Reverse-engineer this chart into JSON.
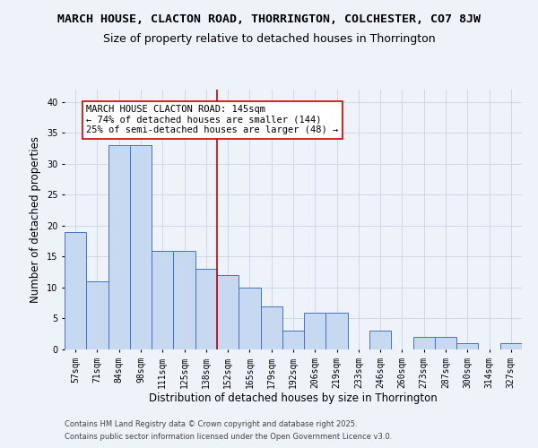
{
  "title": "MARCH HOUSE, CLACTON ROAD, THORRINGTON, COLCHESTER, CO7 8JW",
  "subtitle": "Size of property relative to detached houses in Thorrington",
  "xlabel": "Distribution of detached houses by size in Thorrington",
  "ylabel": "Number of detached properties",
  "categories": [
    "57sqm",
    "71sqm",
    "84sqm",
    "98sqm",
    "111sqm",
    "125sqm",
    "138sqm",
    "152sqm",
    "165sqm",
    "179sqm",
    "192sqm",
    "206sqm",
    "219sqm",
    "233sqm",
    "246sqm",
    "260sqm",
    "273sqm",
    "287sqm",
    "300sqm",
    "314sqm",
    "327sqm"
  ],
  "values": [
    19,
    11,
    33,
    33,
    16,
    16,
    13,
    12,
    10,
    7,
    3,
    6,
    6,
    0,
    3,
    0,
    2,
    2,
    1,
    0,
    1
  ],
  "bar_color": "#c6d9f1",
  "bar_edge_color": "#4472c4",
  "grid_color": "#d0d8e8",
  "background_color": "#eef2f9",
  "annotation_line1": "MARCH HOUSE CLACTON ROAD: 145sqm",
  "annotation_line2": "← 74% of detached houses are smaller (144)",
  "annotation_line3": "25% of semi-detached houses are larger (48) →",
  "annotation_box_color": "#ffffff",
  "annotation_box_edge": "#cc0000",
  "vline_x_index": 6.5,
  "vline_color": "#cc0000",
  "ylim": [
    0,
    42
  ],
  "yticks": [
    0,
    5,
    10,
    15,
    20,
    25,
    30,
    35,
    40
  ],
  "footer1": "Contains HM Land Registry data © Crown copyright and database right 2025.",
  "footer2": "Contains public sector information licensed under the Open Government Licence v3.0.",
  "title_fontsize": 9.5,
  "subtitle_fontsize": 9,
  "tick_fontsize": 7,
  "label_fontsize": 8.5,
  "annotation_fontsize": 7.5,
  "footer_fontsize": 6
}
